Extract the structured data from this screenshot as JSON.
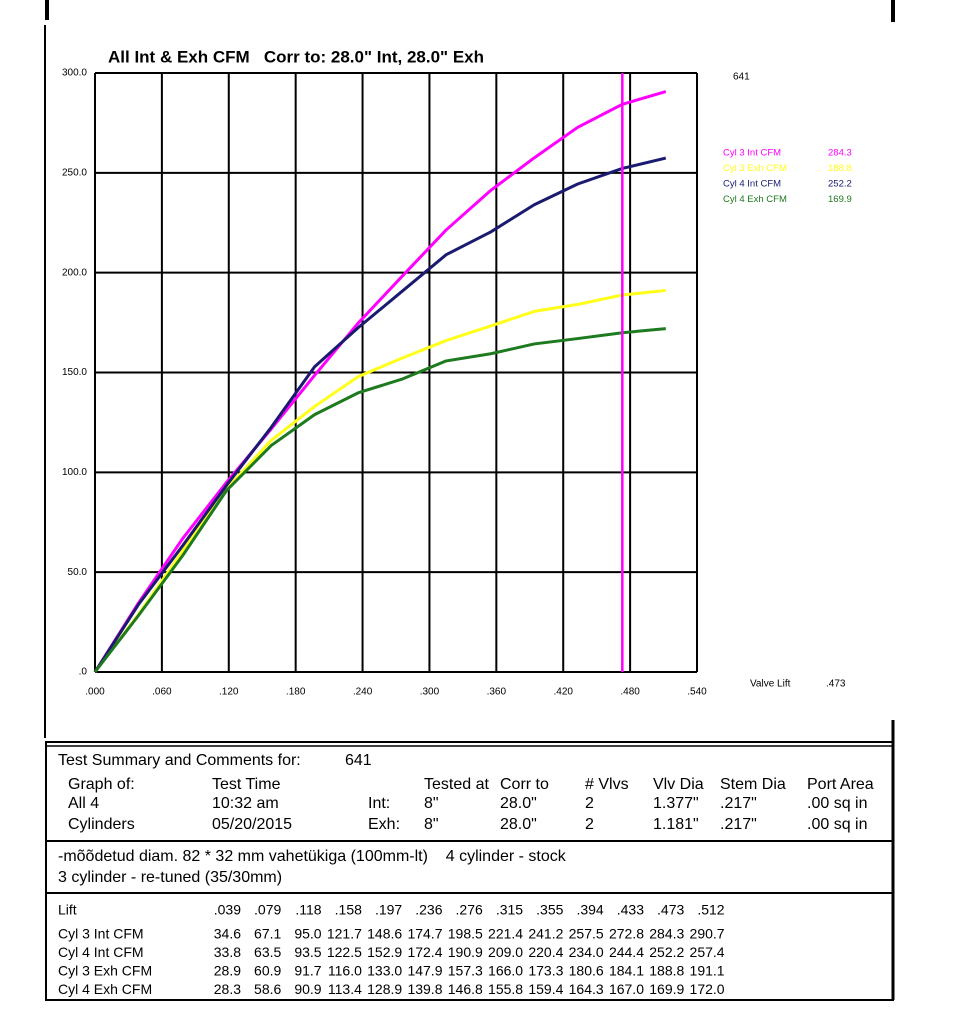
{
  "chart_data": {
    "type": "line",
    "title": "All Int & Exh CFM   Corr to: 28.0\" Int, 28.0\" Exh",
    "test_id": "641",
    "x": [
      0,
      0.039,
      0.079,
      0.118,
      0.158,
      0.197,
      0.236,
      0.276,
      0.315,
      0.355,
      0.394,
      0.433,
      0.473,
      0.512
    ],
    "series": [
      {
        "name": "Cyl 3 Int CFM",
        "color": "#ff00ff",
        "cursor_value": 284.3,
        "values": [
          0,
          34.6,
          67.1,
          95.0,
          121.7,
          148.6,
          174.7,
          198.5,
          221.4,
          241.2,
          257.5,
          272.8,
          284.3,
          290.7
        ]
      },
      {
        "name": "Cyl 3 Exh CFM",
        "color": "#ffff1a",
        "cursor_value": 188.8,
        "values": [
          0,
          28.9,
          60.9,
          91.7,
          116.0,
          133.0,
          147.9,
          157.3,
          166.0,
          173.3,
          180.6,
          184.1,
          188.8,
          191.1
        ]
      },
      {
        "name": "Cyl 4 Int CFM",
        "color": "#1a1a70",
        "cursor_value": 252.2,
        "values": [
          0,
          33.8,
          63.5,
          93.5,
          122.5,
          152.9,
          172.4,
          190.9,
          209.0,
          220.4,
          234.0,
          244.4,
          252.2,
          257.4
        ]
      },
      {
        "name": "Cyl 4 Exh CFM",
        "color": "#1e7a1e",
        "cursor_value": 169.9,
        "values": [
          0,
          28.3,
          58.6,
          90.9,
          113.4,
          128.9,
          139.8,
          146.8,
          155.8,
          159.4,
          164.3,
          167.0,
          169.9,
          172.0
        ]
      }
    ],
    "xlim": [
      0,
      0.54
    ],
    "xticks": [
      {
        "value": 0,
        "label": ".000"
      },
      {
        "value": 0.06,
        "label": ".060"
      },
      {
        "value": 0.12,
        "label": ".120"
      },
      {
        "value": 0.18,
        "label": ".180"
      },
      {
        "value": 0.24,
        "label": ".240"
      },
      {
        "value": 0.3,
        "label": ".300"
      },
      {
        "value": 0.36,
        "label": ".360"
      },
      {
        "value": 0.42,
        "label": ".420"
      },
      {
        "value": 0.48,
        "label": ".480"
      },
      {
        "value": 0.54,
        "label": ".540"
      }
    ],
    "ylim": [
      0,
      300
    ],
    "yticks": [
      {
        "value": 0,
        "label": ".0"
      },
      {
        "value": 50,
        "label": "50.0"
      },
      {
        "value": 100,
        "label": "100.0"
      },
      {
        "value": 150,
        "label": "150.0"
      },
      {
        "value": 200,
        "label": "200.0"
      },
      {
        "value": 250,
        "label": "250.0"
      },
      {
        "value": 300,
        "label": "300.0"
      }
    ],
    "grid": true,
    "cursor": {
      "label": "Valve Lift",
      "value": 0.473,
      "value_label": ".473",
      "color": "#ff00ff"
    }
  },
  "summary": {
    "title": "Test Summary and Comments for:",
    "id": "641",
    "headers": [
      "Graph of:",
      "Test Time",
      "Tested at",
      "Corr to",
      "# Vlvs",
      "Vlv Dia",
      "Stem Dia",
      "Port Area"
    ],
    "rows": [
      [
        "All 4",
        "10:32 am",
        "Int:",
        "8\"",
        "28.0\"",
        "2",
        "1.377\"",
        ".217\"",
        ".00 sq in"
      ],
      [
        "Cylinders",
        "05/20/2015",
        "Exh:",
        "8\"",
        "28.0\"",
        "2",
        "1.181\"",
        ".217\"",
        ".00 sq in"
      ]
    ],
    "comments": [
      "-mõõdetud diam. 82 * 32 mm vahetükiga (100mm-lt)    4 cylinder - stock",
      "3 cylinder - re-tuned (35/30mm)"
    ]
  },
  "table": {
    "lift_label": "Lift",
    "lifts": [
      ".039",
      ".079",
      ".118",
      ".158",
      ".197",
      ".236",
      ".276",
      ".315",
      ".355",
      ".394",
      ".433",
      ".473",
      ".512"
    ],
    "rows": [
      {
        "name": "Cyl 3 Int CFM",
        "values": [
          "34.6",
          "67.1",
          "95.0",
          "121.7",
          "148.6",
          "174.7",
          "198.5",
          "221.4",
          "241.2",
          "257.5",
          "272.8",
          "284.3",
          "290.7"
        ]
      },
      {
        "name": "Cyl 4 Int CFM",
        "values": [
          "33.8",
          "63.5",
          "93.5",
          "122.5",
          "152.9",
          "172.4",
          "190.9",
          "209.0",
          "220.4",
          "234.0",
          "244.4",
          "252.2",
          "257.4"
        ]
      },
      {
        "name": "Cyl 3 Exh CFM",
        "values": [
          "28.9",
          "60.9",
          "91.7",
          "116.0",
          "133.0",
          "147.9",
          "157.3",
          "166.0",
          "173.3",
          "180.6",
          "184.1",
          "188.8",
          "191.1"
        ]
      },
      {
        "name": "Cyl 4 Exh CFM",
        "values": [
          "28.3",
          "58.6",
          "90.9",
          "113.4",
          "128.9",
          "139.8",
          "146.8",
          "155.8",
          "159.4",
          "164.3",
          "167.0",
          "169.9",
          "172.0"
        ]
      }
    ]
  }
}
